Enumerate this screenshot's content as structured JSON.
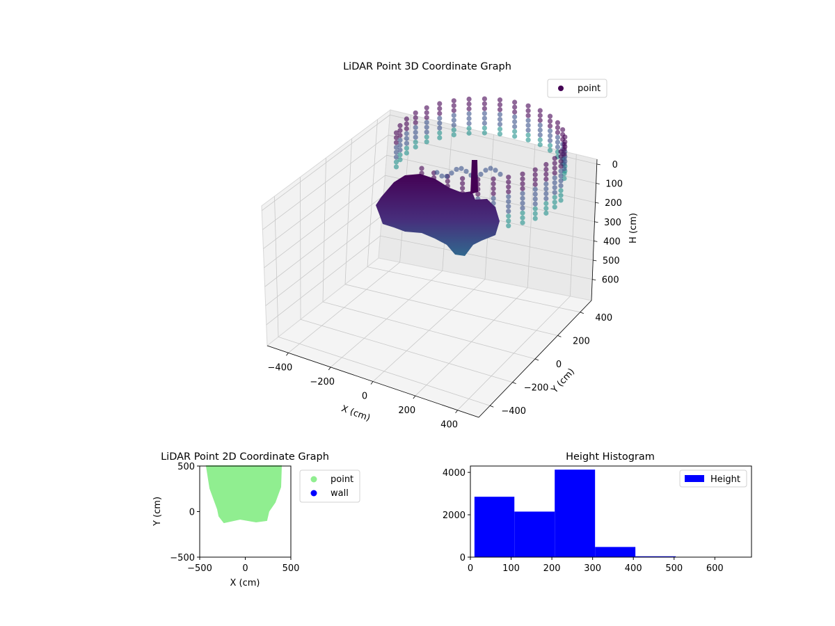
{
  "chart_data": [
    {
      "type": "scatter",
      "subtype": "3d",
      "title": "LiDAR Point 3D Coordinate Graph",
      "xlabel": "X (cm)",
      "ylabel": "Y (cm)",
      "zlabel": "H (cm)",
      "xlim": [
        -500,
        500
      ],
      "ylim": [
        -500,
        500
      ],
      "zlim": [
        700,
        0
      ],
      "x_ticks": [
        "−400",
        "−200",
        "0",
        "200",
        "400"
      ],
      "y_ticks": [
        "−400",
        "−200",
        "0",
        "200",
        "400"
      ],
      "z_ticks": [
        "0",
        "100",
        "200",
        "300",
        "400",
        "500",
        "600"
      ],
      "legend": {
        "position": "top-right",
        "entries": [
          {
            "label": "point",
            "color": "#440154"
          }
        ]
      },
      "colormap": [
        "#440154",
        "#3b528b",
        "#21918c",
        "#5ec962"
      ]
    },
    {
      "type": "scatter",
      "title": "LiDAR Point 2D Coordinate Graph",
      "xlabel": "X (cm)",
      "ylabel": "Y (cm)",
      "xlim": [
        -500,
        500
      ],
      "ylim": [
        -500,
        500
      ],
      "x_ticks": [
        "−500",
        "0",
        "500"
      ],
      "y_ticks": [
        "−500",
        "0",
        "500"
      ],
      "legend": {
        "position": "outside-right",
        "entries": [
          {
            "label": "point",
            "color": "#90ee90"
          },
          {
            "label": "wall",
            "color": "#0000ff"
          }
        ]
      }
    },
    {
      "type": "bar",
      "subtype": "histogram",
      "title": "Height Histogram",
      "xlim": [
        0,
        690
      ],
      "ylim": [
        0,
        4300
      ],
      "x_ticks": [
        "0",
        "100",
        "200",
        "300",
        "400",
        "500",
        "600"
      ],
      "y_ticks": [
        "0",
        "2000",
        "4000"
      ],
      "bins": [
        {
          "from": 10,
          "to": 108,
          "value": 2850
        },
        {
          "from": 108,
          "to": 207,
          "value": 2150
        },
        {
          "from": 207,
          "to": 306,
          "value": 4130
        },
        {
          "from": 306,
          "to": 405,
          "value": 480
        },
        {
          "from": 405,
          "to": 504,
          "value": 40
        },
        {
          "from": 504,
          "to": 603,
          "value": 0
        }
      ],
      "series": [
        {
          "name": "Height",
          "color": "#0000ff"
        }
      ],
      "legend": {
        "position": "top-right"
      }
    }
  ]
}
